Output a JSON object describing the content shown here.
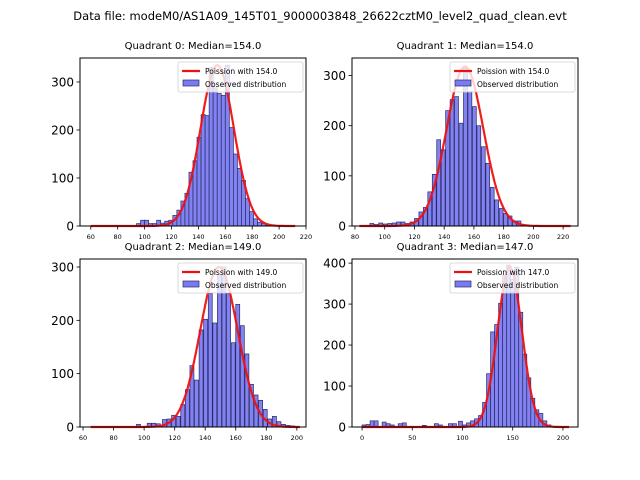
{
  "figure_title": "Data file: modeM0/AS1A09_145T01_9000003848_26622cztM0_level2_quad_clean.evt",
  "colors": {
    "hist_fill": "#7b7bf0",
    "hist_edge": "#2a2a6a",
    "poisson_line": "#ee1111"
  },
  "chart_data": [
    {
      "type": "bar",
      "title": "Quadrant 0: Median=154.0",
      "xlim": [
        52,
        220
      ],
      "ylim": [
        0,
        350
      ],
      "xticks": [
        60,
        80,
        100,
        120,
        140,
        160,
        180,
        200,
        220
      ],
      "yticks": [
        0,
        100,
        200,
        300
      ],
      "legend": [
        "Poission with 154.0",
        "Observed distribution"
      ],
      "legend_position": "upper right",
      "poisson_mean": 154.0,
      "poisson_peak": 335,
      "poisson_range": [
        60,
        212
      ],
      "bin_width": 3,
      "bins_start": [
        94,
        97,
        100,
        103,
        106,
        109,
        112,
        115,
        118,
        121,
        124,
        127,
        130,
        133,
        136,
        139,
        142,
        145,
        148,
        151,
        154,
        157,
        160,
        163,
        166,
        169,
        172,
        175,
        178,
        181,
        184,
        187,
        190
      ],
      "values": [
        5,
        12,
        12,
        5,
        5,
        12,
        6,
        10,
        12,
        22,
        33,
        52,
        68,
        112,
        136,
        185,
        232,
        230,
        330,
        288,
        276,
        272,
        335,
        205,
        150,
        120,
        95,
        57,
        30,
        15,
        8,
        5,
        2
      ]
    },
    {
      "type": "bar",
      "title": "Quadrant 1: Median=154.0",
      "xlim": [
        78,
        230
      ],
      "ylim": [
        0,
        335
      ],
      "xticks": [
        80,
        100,
        120,
        140,
        160,
        180,
        200,
        220
      ],
      "yticks": [
        0,
        100,
        200,
        300
      ],
      "legend": [
        "Poission with 154.0",
        "Observed distribution"
      ],
      "legend_position": "upper right",
      "poisson_mean": 154.0,
      "poisson_peak": 318,
      "poisson_range": [
        83,
        225
      ],
      "bin_width": 2.6,
      "bins_start": [
        90,
        93,
        96,
        99,
        102,
        105,
        108,
        111,
        114,
        117,
        120,
        123,
        126,
        129,
        132,
        135,
        138,
        141,
        144,
        147,
        150,
        153,
        156,
        159,
        162,
        165,
        168,
        171,
        174,
        177,
        180,
        183,
        186,
        189,
        192
      ],
      "values": [
        5,
        3,
        6,
        4,
        5,
        6,
        8,
        8,
        5,
        8,
        15,
        28,
        37,
        68,
        103,
        172,
        152,
        230,
        252,
        258,
        205,
        315,
        268,
        238,
        200,
        158,
        125,
        77,
        52,
        35,
        25,
        20,
        10,
        10,
        2
      ]
    },
    {
      "type": "bar",
      "title": "Quadrant 2: Median=149.0",
      "xlim": [
        58,
        206
      ],
      "ylim": [
        0,
        315
      ],
      "xticks": [
        60,
        80,
        100,
        120,
        140,
        160,
        180,
        200
      ],
      "yticks": [
        0,
        100,
        200,
        300
      ],
      "legend": [
        "Poission with 149.0",
        "Observed distribution"
      ],
      "legend_position": "upper right",
      "poisson_mean": 149.0,
      "poisson_peak": 300,
      "poisson_range": [
        65,
        202
      ],
      "bin_width": 2.6,
      "bins_start": [
        95,
        102,
        105,
        108,
        112,
        115,
        118,
        121,
        124,
        127,
        130,
        133,
        136,
        139,
        142,
        145,
        148,
        151,
        154,
        157,
        160,
        163,
        166,
        169,
        172,
        175,
        178,
        181,
        184,
        187,
        190,
        193,
        196
      ],
      "values": [
        5,
        7,
        7,
        6,
        14,
        15,
        22,
        20,
        42,
        70,
        115,
        88,
        182,
        202,
        250,
        195,
        284,
        300,
        250,
        158,
        230,
        190,
        137,
        80,
        60,
        50,
        33,
        15,
        20,
        10,
        5,
        3,
        2
      ]
    },
    {
      "type": "bar",
      "title": "Quadrant 3: Median=147.0",
      "xlim": [
        -10,
        215
      ],
      "ylim": [
        0,
        410
      ],
      "xticks": [
        0,
        50,
        100,
        150,
        200
      ],
      "yticks": [
        0,
        100,
        200,
        300,
        400
      ],
      "legend": [
        "Poission with 147.0",
        "Observed distribution"
      ],
      "legend_position": "upper right",
      "poisson_mean": 147.0,
      "poisson_peak": 390,
      "poisson_range": [
        0,
        206
      ],
      "bin_width": 4,
      "bins_start": [
        0,
        4,
        8,
        12,
        20,
        24,
        28,
        36,
        40,
        60,
        72,
        76,
        86,
        90,
        96,
        100,
        104,
        108,
        112,
        116,
        120,
        124,
        128,
        132,
        136,
        140,
        144,
        148,
        152,
        156,
        160,
        164,
        168,
        172,
        176,
        180,
        184
      ],
      "values": [
        5,
        6,
        15,
        15,
        12,
        8,
        5,
        8,
        10,
        4,
        8,
        5,
        8,
        8,
        14,
        5,
        10,
        15,
        20,
        28,
        60,
        130,
        232,
        250,
        302,
        370,
        395,
        360,
        390,
        280,
        178,
        120,
        70,
        42,
        33,
        15,
        5
      ]
    }
  ]
}
